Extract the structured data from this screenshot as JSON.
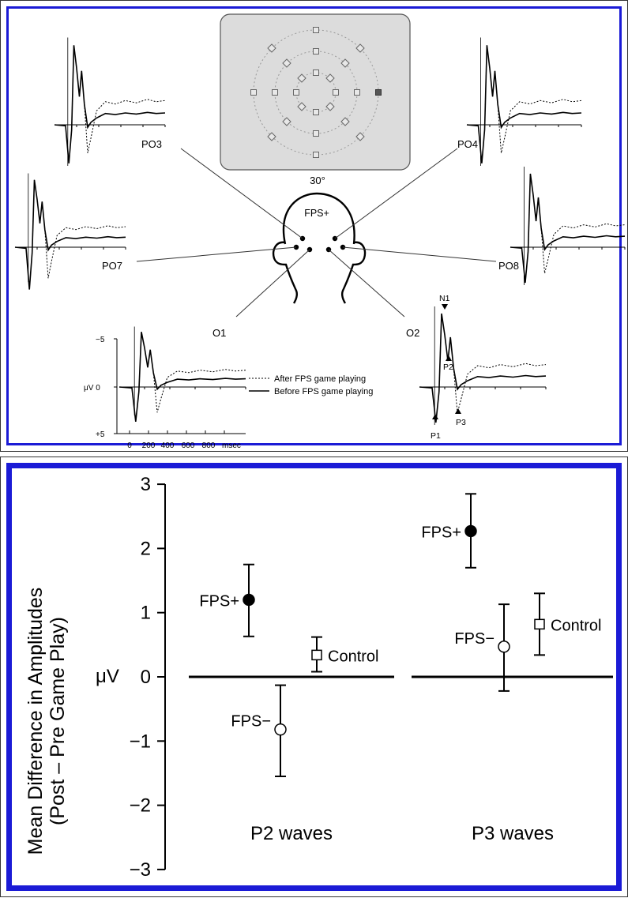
{
  "top_figure": {
    "display_angle": "30°",
    "head_label": "FPS+",
    "electrodes": [
      "PO3",
      "PO4",
      "PO7",
      "PO8",
      "O1",
      "O2"
    ],
    "axis": {
      "y_top": "−5",
      "y_mid": "μV 0",
      "y_bottom": "+5",
      "x_ticks": [
        "0",
        "200",
        "400",
        "600",
        "800"
      ],
      "x_unit": "msec"
    },
    "peaks": [
      "N1",
      "P2",
      "P1",
      "P3"
    ],
    "legend": {
      "dashed": "After FPS game playing",
      "solid": "Before FPS game playing"
    }
  },
  "chart_data": {
    "type": "scatter",
    "ylabel_line1": "Mean Difference in Amplitudes",
    "ylabel_line2": "(Post – Pre Game Play)",
    "y_unit_label": "μV",
    "ylim": [
      -3,
      3
    ],
    "yticks": [
      "3",
      "2",
      "1",
      "0",
      "−1",
      "−2",
      "−3"
    ],
    "groups": [
      "P2 waves",
      "P3 waves"
    ],
    "series": [
      {
        "name": "FPS+",
        "marker": "filled-circle",
        "values": [
          {
            "group": "P2 waves",
            "mean": 1.2,
            "lo": 0.63,
            "hi": 1.75
          },
          {
            "group": "P3 waves",
            "mean": 2.27,
            "lo": 1.7,
            "hi": 2.85
          }
        ]
      },
      {
        "name": "FPS−",
        "marker": "open-circle",
        "values": [
          {
            "group": "P2 waves",
            "mean": -0.82,
            "lo": -1.55,
            "hi": -0.13
          },
          {
            "group": "P3 waves",
            "mean": 0.47,
            "lo": -0.22,
            "hi": 1.13
          }
        ]
      },
      {
        "name": "Control",
        "marker": "open-square",
        "values": [
          {
            "group": "P2 waves",
            "mean": 0.34,
            "lo": 0.08,
            "hi": 0.62
          },
          {
            "group": "P3 waves",
            "mean": 0.82,
            "lo": 0.34,
            "hi": 1.3
          }
        ]
      }
    ]
  }
}
